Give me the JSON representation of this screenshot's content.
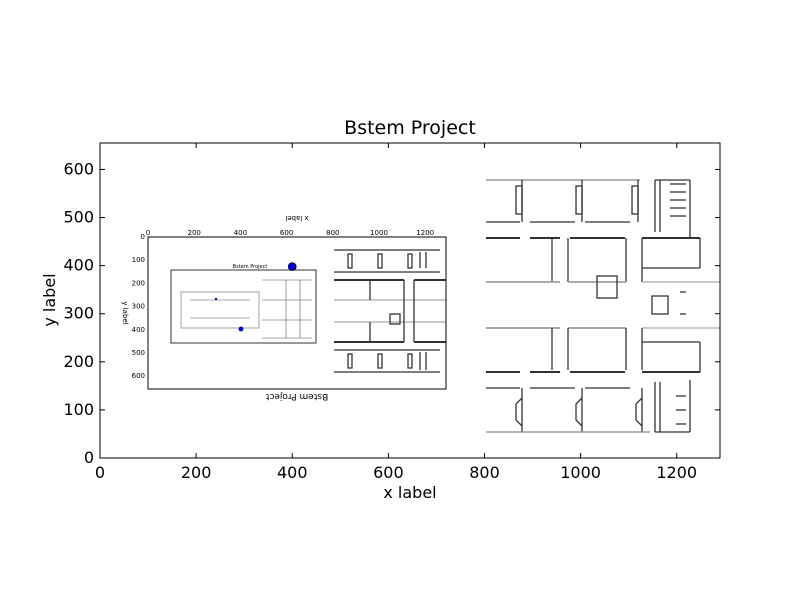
{
  "chart_data": {
    "type": "scatter",
    "title": "Bstem Project",
    "xlabel": "x label",
    "ylabel": "y label",
    "xlim": [
      0,
      1290
    ],
    "ylim": [
      0,
      655
    ],
    "x_ticks": [
      0,
      200,
      400,
      600,
      800,
      1000,
      1200
    ],
    "y_ticks": [
      0,
      100,
      200,
      300,
      400,
      500,
      600
    ],
    "grid": false,
    "series": [
      {
        "x": [
          400
        ],
        "y": [
          398
        ],
        "color": "#0000cc"
      }
    ],
    "inset": {
      "title": "Bstem Project",
      "xlabel": "x label",
      "ylabel": "y label",
      "x_ticks": [
        0,
        200,
        400,
        600,
        800,
        1000,
        1200
      ],
      "y_ticks": [
        0,
        100,
        200,
        300,
        400,
        500,
        600
      ],
      "inner_title": "Bstem Project"
    }
  },
  "colors": {
    "marker": "#0000cc",
    "axes": "#000000",
    "walls": "#333333"
  }
}
